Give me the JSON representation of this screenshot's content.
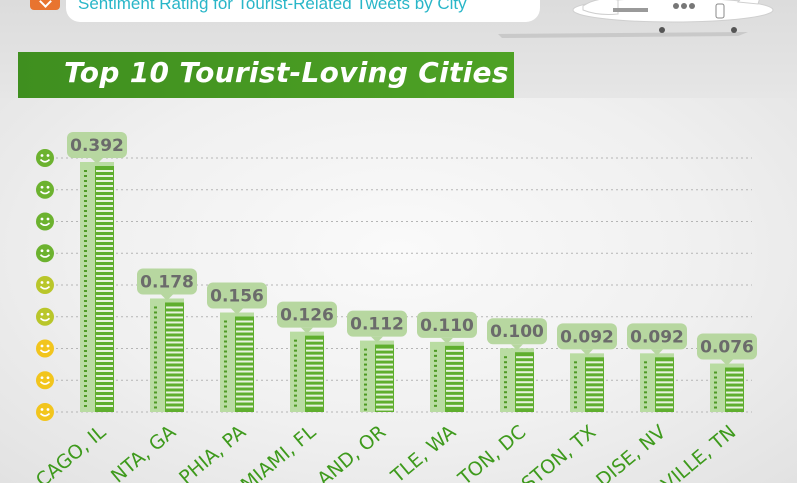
{
  "header": {
    "subtitle": "Sentiment Rating for Tourist-Related Tweets by City",
    "title": "Top 10 Tourist-Loving Cities"
  },
  "chart_data": {
    "type": "bar",
    "title": "Top 10 Tourist-Loving Cities",
    "subtitle": "Sentiment Rating for Tourist-Related Tweets by City",
    "categories": [
      "CHICAGO, IL",
      "ATLANTA, GA",
      "PHILADELPHIA, PA",
      "MIAMI, FL",
      "PORTLAND, OR",
      "SEATTLE, WA",
      "WASHINGTON, DC",
      "HOUSTON, TX",
      "PARADISE, NV",
      "NASHVILLE, TN"
    ],
    "category_labels_visible": [
      "CAGO, IL",
      "NTA, GA",
      "PHIA, PA",
      "MIAMI, FL",
      "AND, OR",
      "TLE, WA",
      "TON, DC",
      "STON, TX",
      "DISE, NV",
      "VILLE, TN"
    ],
    "values": [
      0.392,
      0.178,
      0.156,
      0.126,
      0.112,
      0.11,
      0.1,
      0.092,
      0.092,
      0.076
    ],
    "value_labels": [
      "0.392",
      "0.178",
      "0.156",
      "0.126",
      "0.112",
      "0.110",
      "0.100",
      "0.092",
      "0.092",
      "0.076"
    ],
    "ylim": [
      0,
      0.392
    ],
    "yaxis": "smiley-face icons (no numeric ticks)",
    "grid": true,
    "bar_style": "green building skyscrapers",
    "colors": {
      "bar": "#5fae2e",
      "bar_light": "#b9dca2",
      "label_bg": "#b7d7a0",
      "label_text": "#6b6b6b",
      "city_text": "#3e9a1c",
      "title_banner": "#4a9c22",
      "subtitle_text": "#29b6c8",
      "smiley_green": "#6cb22f",
      "smiley_yellow": "#f2c51d"
    }
  }
}
